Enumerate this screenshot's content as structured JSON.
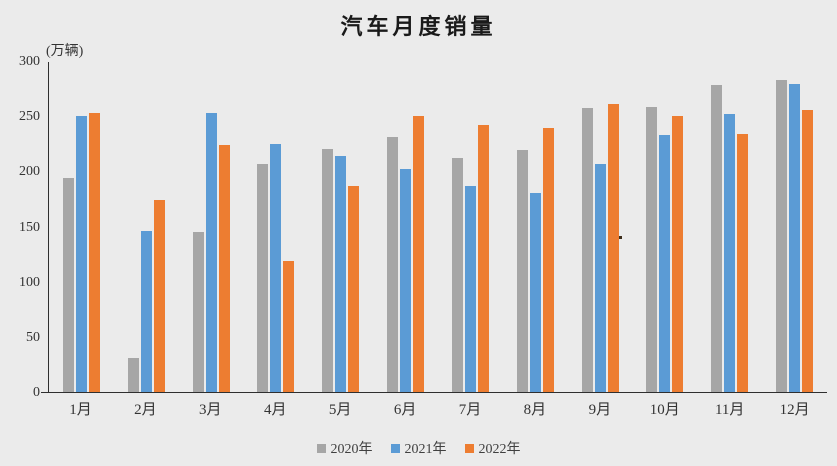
{
  "chart_data": {
    "type": "bar",
    "title": "汽车月度销量",
    "ylabel": "(万辆)",
    "xlabel": "",
    "categories": [
      "1月",
      "2月",
      "3月",
      "4月",
      "5月",
      "6月",
      "7月",
      "8月",
      "9月",
      "10月",
      "11月",
      "12月"
    ],
    "series": [
      {
        "name": "2020年",
        "color": "#A6A6A6",
        "values": [
          194,
          31,
          145,
          207,
          220,
          231,
          212,
          219,
          257,
          258,
          278,
          283
        ]
      },
      {
        "name": "2021年",
        "color": "#5B9BD5",
        "values": [
          250,
          146,
          253,
          225,
          214,
          202,
          187,
          180,
          207,
          233,
          252,
          279
        ]
      },
      {
        "name": "2022年",
        "color": "#ED7D31",
        "values": [
          253,
          174,
          224,
          119,
          187,
          250,
          242,
          239,
          261,
          250,
          234,
          256
        ]
      }
    ],
    "ylim": [
      0,
      300
    ],
    "yticks": [
      300,
      250,
      200,
      150,
      100,
      50,
      0
    ],
    "grid": false,
    "legend_position": "bottom"
  },
  "colors": {
    "background": "#EBEBEB",
    "axis": "#2f2f2f",
    "text": "#333333"
  }
}
